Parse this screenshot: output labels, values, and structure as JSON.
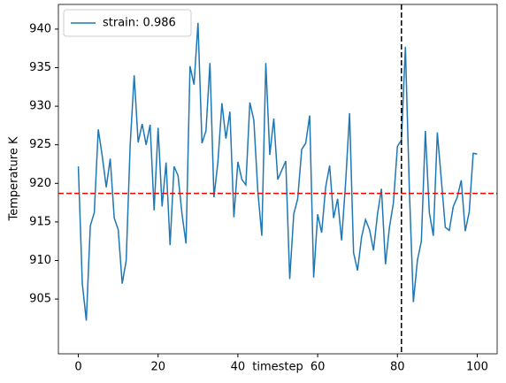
{
  "chart_data": {
    "type": "line",
    "xlabel": "timestep",
    "ylabel": "Temperature K",
    "x": [
      0,
      1,
      2,
      3,
      4,
      5,
      6,
      7,
      8,
      9,
      10,
      11,
      12,
      13,
      14,
      15,
      16,
      17,
      18,
      19,
      20,
      21,
      22,
      23,
      24,
      25,
      26,
      27,
      28,
      29,
      30,
      31,
      32,
      33,
      34,
      35,
      36,
      37,
      38,
      39,
      40,
      41,
      42,
      43,
      44,
      45,
      46,
      47,
      48,
      49,
      50,
      51,
      52,
      53,
      54,
      55,
      56,
      57,
      58,
      59,
      60,
      61,
      62,
      63,
      64,
      65,
      66,
      67,
      68,
      69,
      70,
      71,
      72,
      73,
      74,
      75,
      76,
      77,
      78,
      79,
      80,
      81,
      82,
      83,
      84,
      85,
      86,
      87,
      88,
      89,
      90,
      91,
      92,
      93,
      94,
      95,
      96,
      97,
      98,
      99,
      100
    ],
    "series": [
      {
        "name": "strain: 0.986",
        "color": "#1f77b4",
        "values": [
          922.2,
          907,
          902.2,
          914.5,
          916.2,
          927,
          923.5,
          919.5,
          923.2,
          915.5,
          914,
          907,
          910,
          925,
          934,
          925.3,
          927.7,
          925,
          927.6,
          916.5,
          927.2,
          917,
          922.7,
          912,
          922.2,
          921,
          916,
          912.2,
          935.2,
          932.8,
          940.8,
          925.2,
          926.8,
          935.6,
          918.2,
          922.8,
          930.4,
          925.8,
          929.3,
          915.6,
          922.8,
          920.5,
          919.8,
          930.5,
          928.2,
          919,
          913.2,
          935.6,
          923.7,
          928.4,
          920.5,
          921.7,
          922.9,
          907.6,
          916,
          918,
          924.4,
          925.2,
          928.8,
          907.8,
          916,
          913.6,
          919.5,
          922.3,
          915.5,
          918,
          912.6,
          920,
          929.1,
          911,
          908.7,
          913,
          915.3,
          914,
          911.3,
          916,
          919.3,
          909.5,
          914.3,
          917.5,
          924.8,
          925.6,
          937.7,
          919,
          904.6,
          910,
          912.5,
          926.8,
          916.2,
          913.2,
          926.6,
          920.5,
          914.3,
          913.9,
          917,
          918.2,
          920.4,
          913.8,
          916.3,
          923.9,
          923.8
        ]
      }
    ],
    "hlines": [
      {
        "y": 918.7,
        "color": "#ff0000"
      }
    ],
    "vlines": [
      {
        "x": 81,
        "color": "#000000"
      }
    ],
    "xlim": [
      -5,
      105
    ],
    "ylim": [
      897.9,
      943.2
    ],
    "xticks": [
      0,
      20,
      40,
      60,
      80,
      100
    ],
    "yticks": [
      905,
      910,
      915,
      920,
      925,
      930,
      935,
      940
    ],
    "legend": "upper left"
  }
}
